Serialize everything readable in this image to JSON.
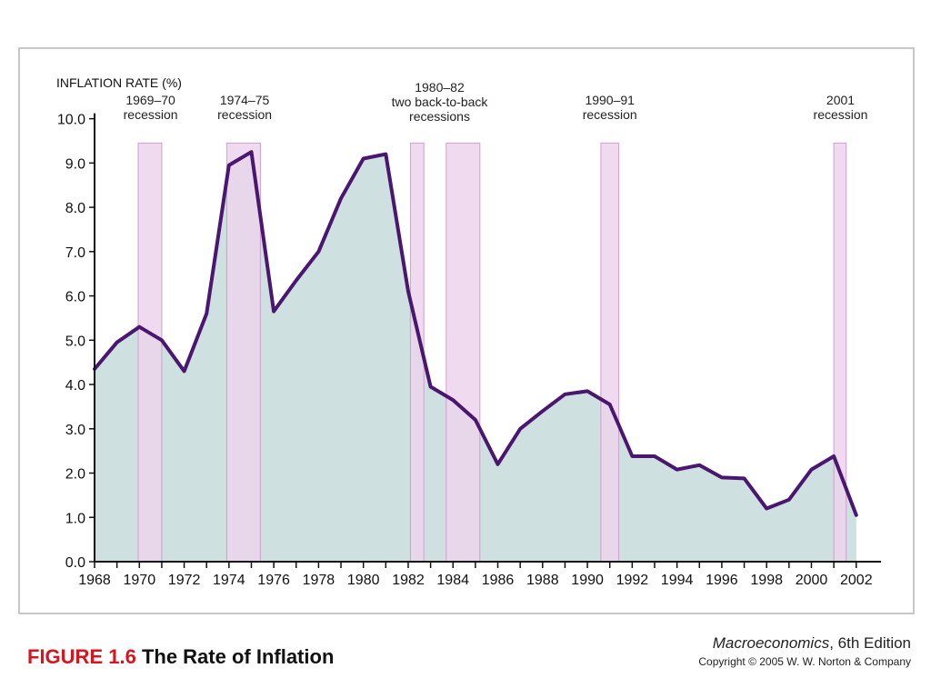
{
  "figure": {
    "number": "FIGURE 1.6",
    "title": "The Rate of Inflation"
  },
  "book": {
    "title": "Macroeconomics",
    "edition": ", 6th Edition",
    "copyright": "Copyright © 2005 W. W. Norton & Company"
  },
  "colors": {
    "line": "#4b1670",
    "area": "#cfe0e0",
    "recession": "#ecd4ec",
    "recession_border": "#cf9fcf",
    "axis": "#111111",
    "caption_accent": "#d8141c"
  },
  "chart_data": {
    "type": "area",
    "title": "",
    "ylabel": "INFLATION RATE (%)",
    "xlabel": "",
    "xlim": [
      1968,
      2002.7
    ],
    "ylim": [
      0,
      10.3
    ],
    "grid": false,
    "y_ticks": [
      0,
      1,
      2,
      3,
      4,
      5,
      6,
      7,
      8,
      9,
      10
    ],
    "y_tick_labels": [
      "0.0",
      "1.0",
      "2.0",
      "3.0",
      "4.0",
      "5.0",
      "6.0",
      "7.0",
      "8.0",
      "9.0",
      "10.0"
    ],
    "x_ticks": [
      1968,
      1970,
      1972,
      1974,
      1976,
      1978,
      1980,
      1982,
      1984,
      1986,
      1988,
      1990,
      1992,
      1994,
      1996,
      1998,
      2000,
      2002
    ],
    "x_tick_labels": [
      "1968",
      "1970",
      "1972",
      "1974",
      "1976",
      "1978",
      "1980",
      "1982",
      "1984",
      "1986",
      "1988",
      "1990",
      "1992",
      "1994",
      "1996",
      "1998",
      "2000",
      "2002"
    ],
    "series": [
      {
        "x": [
          1968,
          1969,
          1970,
          1971,
          1972,
          1973,
          1974,
          1975,
          1976,
          1977,
          1978,
          1979,
          1980,
          1981,
          1982,
          1983,
          1984,
          1985,
          1986,
          1987,
          1988,
          1989,
          1990,
          1991,
          1992,
          1993,
          1994,
          1995,
          1996,
          1997,
          1998,
          1999,
          2000,
          2001,
          2002
        ],
        "y": [
          4.35,
          4.95,
          5.3,
          5.0,
          4.3,
          5.6,
          8.95,
          9.25,
          5.65,
          6.35,
          7.0,
          8.2,
          9.1,
          9.2,
          6.1,
          3.95,
          3.65,
          3.2,
          2.2,
          3.0,
          3.4,
          3.78,
          3.85,
          3.55,
          2.38,
          2.38,
          2.08,
          2.18,
          1.9,
          1.88,
          1.2,
          1.4,
          2.08,
          2.38,
          1.05
        ]
      }
    ],
    "recessions": [
      {
        "start": 1969.95,
        "end": 1971.0,
        "label": [
          "1969–70",
          "recession"
        ],
        "label_x": 1970.5
      },
      {
        "start": 1973.9,
        "end": 1975.4,
        "label": [
          "1974–75",
          "recession"
        ],
        "label_x": 1974.7
      },
      {
        "start": 1982.1,
        "end": 1982.7,
        "label": [],
        "label_x": 1982.4
      },
      {
        "start": 1983.7,
        "end": 1985.2,
        "label": [
          "1980–82",
          "two back-to-back",
          "recessions"
        ],
        "label_x": 1983.4
      },
      {
        "start": 1990.6,
        "end": 1991.4,
        "label": [
          "1990–91",
          "recession"
        ],
        "label_x": 1991.0
      },
      {
        "start": 2001.0,
        "end": 2001.55,
        "label": [
          "2001",
          "recession"
        ],
        "label_x": 2001.3
      }
    ],
    "recession_top": 9.45
  }
}
